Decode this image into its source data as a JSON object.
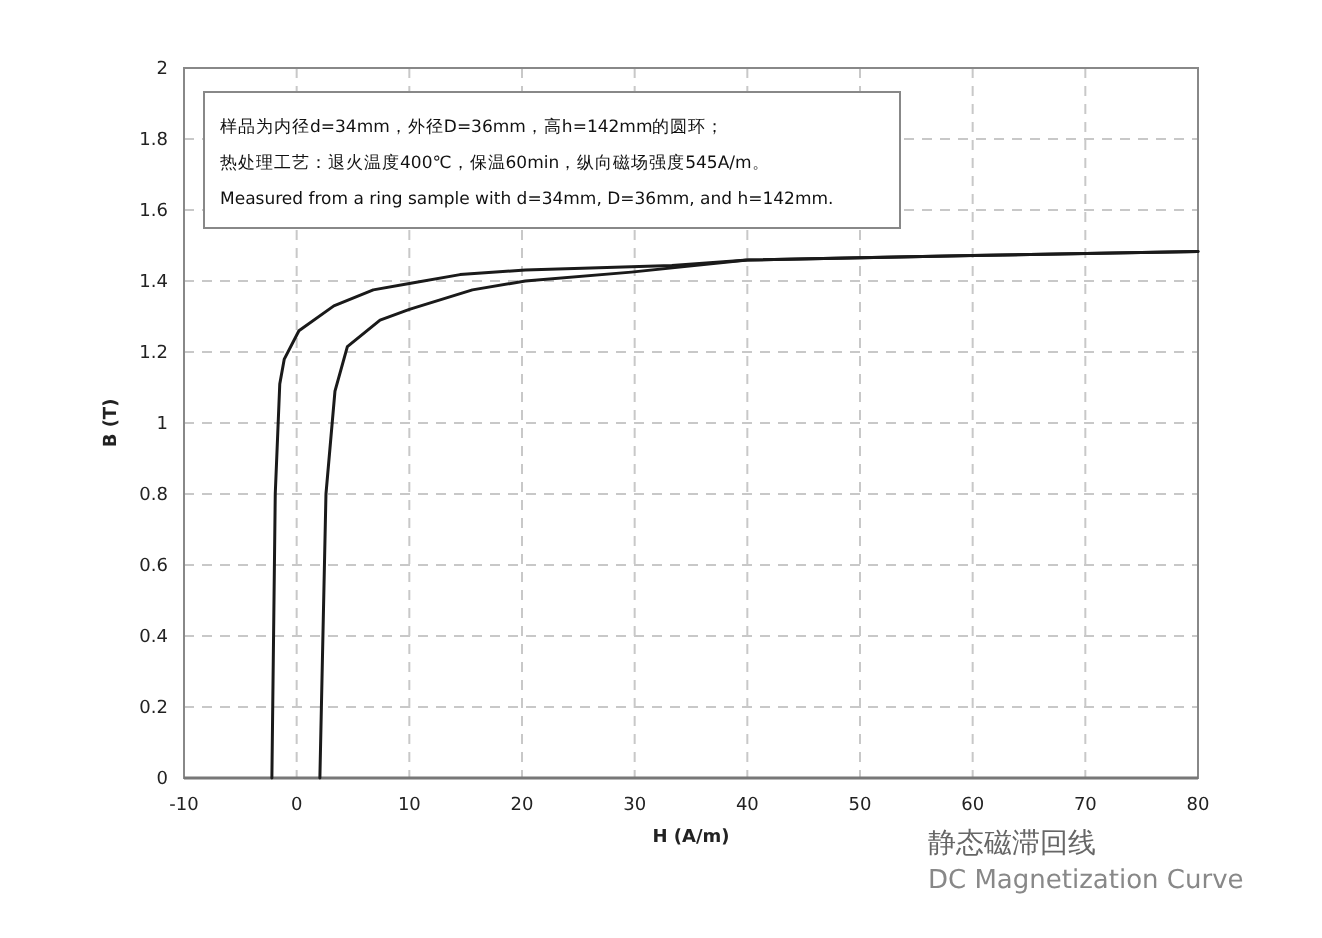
{
  "chart_data": {
    "type": "line",
    "title": "静态磁滞回线",
    "subtitle": "DC Magnetization Curve",
    "xlabel": "H (A/m)",
    "ylabel": "B (T)",
    "annotations": [
      "样品为内径d=34mm，外径D=36mm，高h=142mm的圆环；",
      "热处理工艺：退火温度400℃，保温60min，纵向磁场强度545A/m。",
      "Measured from a ring sample with d=34mm, D=36mm, and h=142mm."
    ],
    "series": [
      {
        "color": "#1a1a1a",
        "x": [
          -2.2,
          -1.9,
          -1.5,
          -1.1,
          0.2,
          3.3,
          6.8,
          10,
          14.5,
          20.3,
          33.3,
          40,
          60,
          80
        ],
        "values": [
          0,
          0.8,
          1.11,
          1.18,
          1.26,
          1.33,
          1.375,
          1.393,
          1.418,
          1.431,
          1.444,
          1.459,
          1.472,
          1.483
        ]
      },
      {
        "color": "#1a1a1a",
        "x": [
          2.06,
          2.6,
          3.4,
          4.5,
          7.4,
          10,
          15.6,
          20.3,
          29.7,
          40,
          60,
          80
        ],
        "values": [
          0,
          0.8,
          1.09,
          1.215,
          1.29,
          1.32,
          1.375,
          1.4,
          1.425,
          1.459,
          1.472,
          1.483
        ]
      }
    ],
    "xlim": [
      -10,
      80
    ],
    "xticks": [
      -10,
      0,
      10,
      20,
      30,
      40,
      50,
      60,
      70,
      80
    ],
    "ylim": [
      0,
      2
    ],
    "yticks": [
      0,
      0.2,
      0.4,
      0.6,
      0.8,
      1,
      1.2,
      1.4,
      1.6,
      1.8,
      2
    ],
    "grid": true,
    "marker": "none",
    "line_style": "solid"
  }
}
